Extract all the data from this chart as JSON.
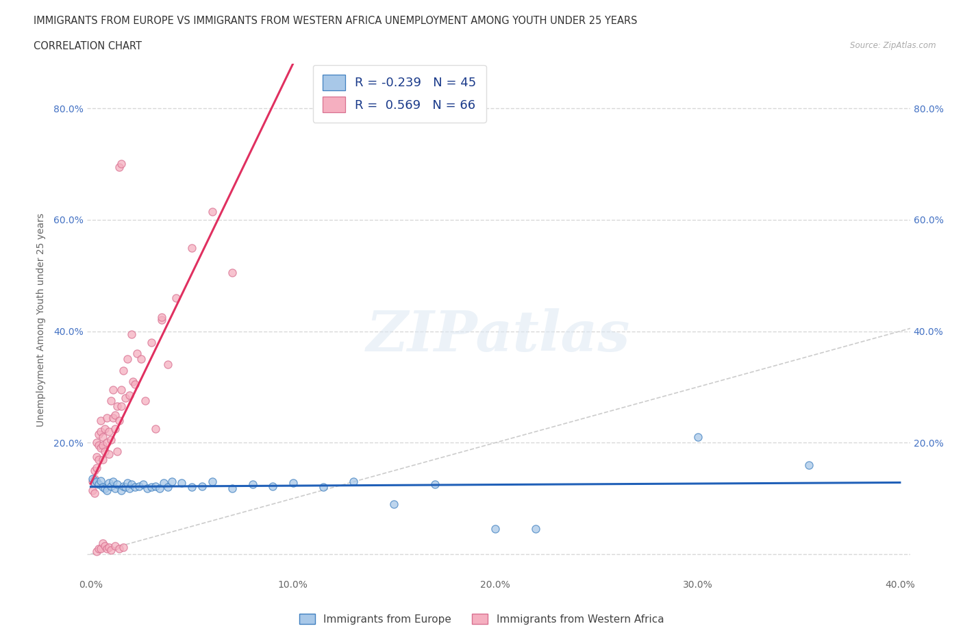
{
  "title_line1": "IMMIGRANTS FROM EUROPE VS IMMIGRANTS FROM WESTERN AFRICA UNEMPLOYMENT AMONG YOUTH UNDER 25 YEARS",
  "title_line2": "CORRELATION CHART",
  "source": "Source: ZipAtlas.com",
  "ylabel": "Unemployment Among Youth under 25 years",
  "xlim": [
    -0.002,
    0.405
  ],
  "ylim": [
    -0.04,
    0.88
  ],
  "xticks": [
    0.0,
    0.1,
    0.2,
    0.3,
    0.4
  ],
  "xtick_labels": [
    "0.0%",
    "10.0%",
    "20.0%",
    "30.0%",
    "40.0%"
  ],
  "ytick_positions": [
    0.0,
    0.2,
    0.4,
    0.6,
    0.8
  ],
  "ytick_labels": [
    "",
    "20.0%",
    "40.0%",
    "60.0%",
    "80.0%"
  ],
  "grid_color": "#d8d8d8",
  "background_color": "#ffffff",
  "watermark": "ZIPatlas",
  "europe_face_color": "#a8c8e8",
  "europe_edge_color": "#4080c0",
  "europe_line_color": "#2060b8",
  "wa_face_color": "#f5afc0",
  "wa_edge_color": "#d87090",
  "wa_line_color": "#e03060",
  "legend_eu_text": "R = -0.239   N = 45",
  "legend_wa_text": "R =  0.569   N = 66",
  "series1_label": "Immigrants from Europe",
  "series2_label": "Immigrants from Western Africa",
  "europe_scatter_x": [
    0.001,
    0.002,
    0.003,
    0.004,
    0.005,
    0.006,
    0.007,
    0.008,
    0.009,
    0.01,
    0.011,
    0.012,
    0.013,
    0.015,
    0.016,
    0.017,
    0.018,
    0.019,
    0.02,
    0.022,
    0.024,
    0.026,
    0.028,
    0.03,
    0.032,
    0.034,
    0.036,
    0.038,
    0.04,
    0.045,
    0.05,
    0.055,
    0.06,
    0.07,
    0.08,
    0.09,
    0.1,
    0.115,
    0.13,
    0.15,
    0.17,
    0.2,
    0.22,
    0.3,
    0.355
  ],
  "europe_scatter_y": [
    0.135,
    0.128,
    0.13,
    0.125,
    0.132,
    0.12,
    0.118,
    0.115,
    0.128,
    0.122,
    0.13,
    0.118,
    0.125,
    0.115,
    0.122,
    0.12,
    0.128,
    0.118,
    0.125,
    0.12,
    0.122,
    0.125,
    0.118,
    0.12,
    0.122,
    0.118,
    0.128,
    0.12,
    0.13,
    0.128,
    0.12,
    0.122,
    0.13,
    0.118,
    0.125,
    0.122,
    0.128,
    0.12,
    0.13,
    0.09,
    0.125,
    0.045,
    0.045,
    0.21,
    0.16
  ],
  "wa_scatter_x": [
    0.001,
    0.001,
    0.002,
    0.002,
    0.002,
    0.003,
    0.003,
    0.003,
    0.004,
    0.004,
    0.004,
    0.005,
    0.005,
    0.005,
    0.006,
    0.006,
    0.006,
    0.007,
    0.007,
    0.008,
    0.008,
    0.009,
    0.009,
    0.01,
    0.01,
    0.011,
    0.011,
    0.012,
    0.012,
    0.013,
    0.013,
    0.014,
    0.015,
    0.015,
    0.016,
    0.017,
    0.018,
    0.019,
    0.02,
    0.021,
    0.022,
    0.023,
    0.025,
    0.027,
    0.03,
    0.032,
    0.035,
    0.038,
    0.042,
    0.05,
    0.014,
    0.015,
    0.035,
    0.06,
    0.07,
    0.003,
    0.004,
    0.005,
    0.006,
    0.007,
    0.008,
    0.009,
    0.01,
    0.012,
    0.014,
    0.016
  ],
  "wa_scatter_y": [
    0.13,
    0.115,
    0.15,
    0.135,
    0.11,
    0.175,
    0.155,
    0.2,
    0.215,
    0.17,
    0.195,
    0.24,
    0.19,
    0.22,
    0.195,
    0.17,
    0.21,
    0.225,
    0.185,
    0.245,
    0.2,
    0.22,
    0.18,
    0.275,
    0.205,
    0.295,
    0.245,
    0.25,
    0.225,
    0.265,
    0.185,
    0.24,
    0.295,
    0.265,
    0.33,
    0.28,
    0.35,
    0.285,
    0.395,
    0.31,
    0.305,
    0.36,
    0.35,
    0.275,
    0.38,
    0.225,
    0.42,
    0.34,
    0.46,
    0.55,
    0.695,
    0.7,
    0.425,
    0.615,
    0.505,
    0.005,
    0.01,
    0.01,
    0.02,
    0.015,
    0.01,
    0.012,
    0.008,
    0.015,
    0.01,
    0.012
  ]
}
